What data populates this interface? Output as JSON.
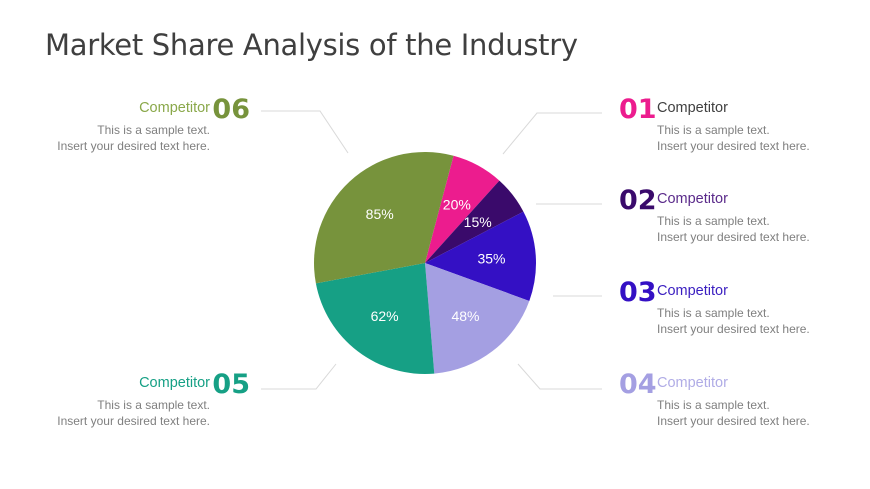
{
  "title": "Market Share Analysis of the Industry",
  "description_lines": [
    "This is a sample text.",
    "Insert your desired text here."
  ],
  "competitors": [
    {
      "num": "01",
      "label": "Competitor",
      "color": "#ec1c8e",
      "label_color": "#404040"
    },
    {
      "num": "02",
      "label": "Competitor",
      "color": "#3a0a6b",
      "label_color": "#5a2a8a"
    },
    {
      "num": "03",
      "label": "Competitor",
      "color": "#3410c4",
      "label_color": "#3a1ec0"
    },
    {
      "num": "04",
      "label": "Competitor",
      "color": "#a49fe2",
      "label_color": "#b0ace6"
    },
    {
      "num": "05",
      "label": "Competitor",
      "color": "#16a085",
      "label_color": "#16a085"
    },
    {
      "num": "06",
      "label": "Competitor",
      "color": "#77933c",
      "label_color": "#8aa84a"
    }
  ],
  "chart_data": {
    "type": "pie",
    "slices": [
      {
        "label": "20%",
        "value": 20,
        "color": "#ec1c8e"
      },
      {
        "label": "15%",
        "value": 15,
        "color": "#3a0a6b"
      },
      {
        "label": "35%",
        "value": 35,
        "color": "#3410c4"
      },
      {
        "label": "48%",
        "value": 48,
        "color": "#a49fe2"
      },
      {
        "label": "62%",
        "value": 62,
        "color": "#16a085"
      },
      {
        "label": "85%",
        "value": 85,
        "color": "#77933c"
      }
    ]
  }
}
